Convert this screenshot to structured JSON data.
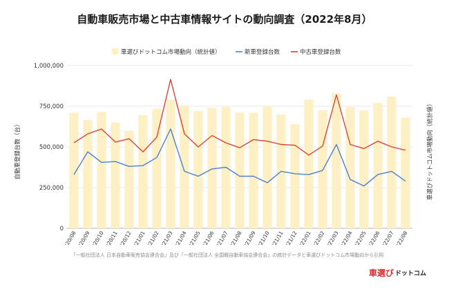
{
  "chart_data": {
    "type": "bar",
    "title": "自動車販売市場と中古車情報サイトの動向調査（2022年8月）",
    "ylabel": "自動車登録台数（台）",
    "y2label": "車選びドットコム市場動向（統計値）",
    "ylim": [
      0,
      1000000
    ],
    "yticks": [
      "0",
      "250,000",
      "500,000",
      "750,000",
      "1,000,000"
    ],
    "ytick_values": [
      0,
      250000,
      500000,
      750000,
      1000000
    ],
    "legend_position": "top",
    "categories": [
      "'20/08",
      "'20/09",
      "'20/10",
      "'20/11",
      "'20/12",
      "'21/01",
      "'21/02",
      "'21/03",
      "'21/04",
      "'21/05",
      "'21/06",
      "'21/07",
      "'21/08",
      "'21/09",
      "'21/10",
      "'21/11",
      "'21/12",
      "'22/01",
      "'22/02",
      "'22/03",
      "'22/04",
      "'22/05",
      "'22/06",
      "'22/07",
      "'22/08"
    ],
    "series": [
      {
        "name": "車選びドットコム市場動向（統計値）",
        "kind": "bar",
        "color": "#fdf0c4",
        "values": [
          710000,
          665000,
          715000,
          650000,
          600000,
          695000,
          735000,
          790000,
          755000,
          720000,
          740000,
          745000,
          710000,
          710000,
          750000,
          700000,
          640000,
          790000,
          725000,
          830000,
          745000,
          725000,
          770000,
          810000,
          680000
        ]
      },
      {
        "name": "新車登録台数",
        "kind": "line",
        "color": "#4a7fd4",
        "values": [
          330000,
          470000,
          405000,
          410000,
          380000,
          385000,
          435000,
          610000,
          350000,
          320000,
          365000,
          375000,
          320000,
          320000,
          280000,
          350000,
          335000,
          330000,
          355000,
          515000,
          300000,
          260000,
          330000,
          350000,
          290000
        ]
      },
      {
        "name": "中古車登録台数",
        "kind": "line",
        "color": "#d9423a",
        "values": [
          525000,
          580000,
          610000,
          530000,
          550000,
          470000,
          560000,
          915000,
          580000,
          500000,
          570000,
          525000,
          495000,
          545000,
          535000,
          515000,
          510000,
          450000,
          505000,
          820000,
          515000,
          490000,
          535000,
          500000,
          480000
        ]
      }
    ]
  },
  "source_note": "「一般社団法人 日本自動車販売協会連合会」及び「一般社団法人 全国軽自動車協会連合会」の統計データと車選びドットコム市場動向から引用",
  "logo": {
    "part1": "車選び",
    "part2": "ドットコム"
  }
}
